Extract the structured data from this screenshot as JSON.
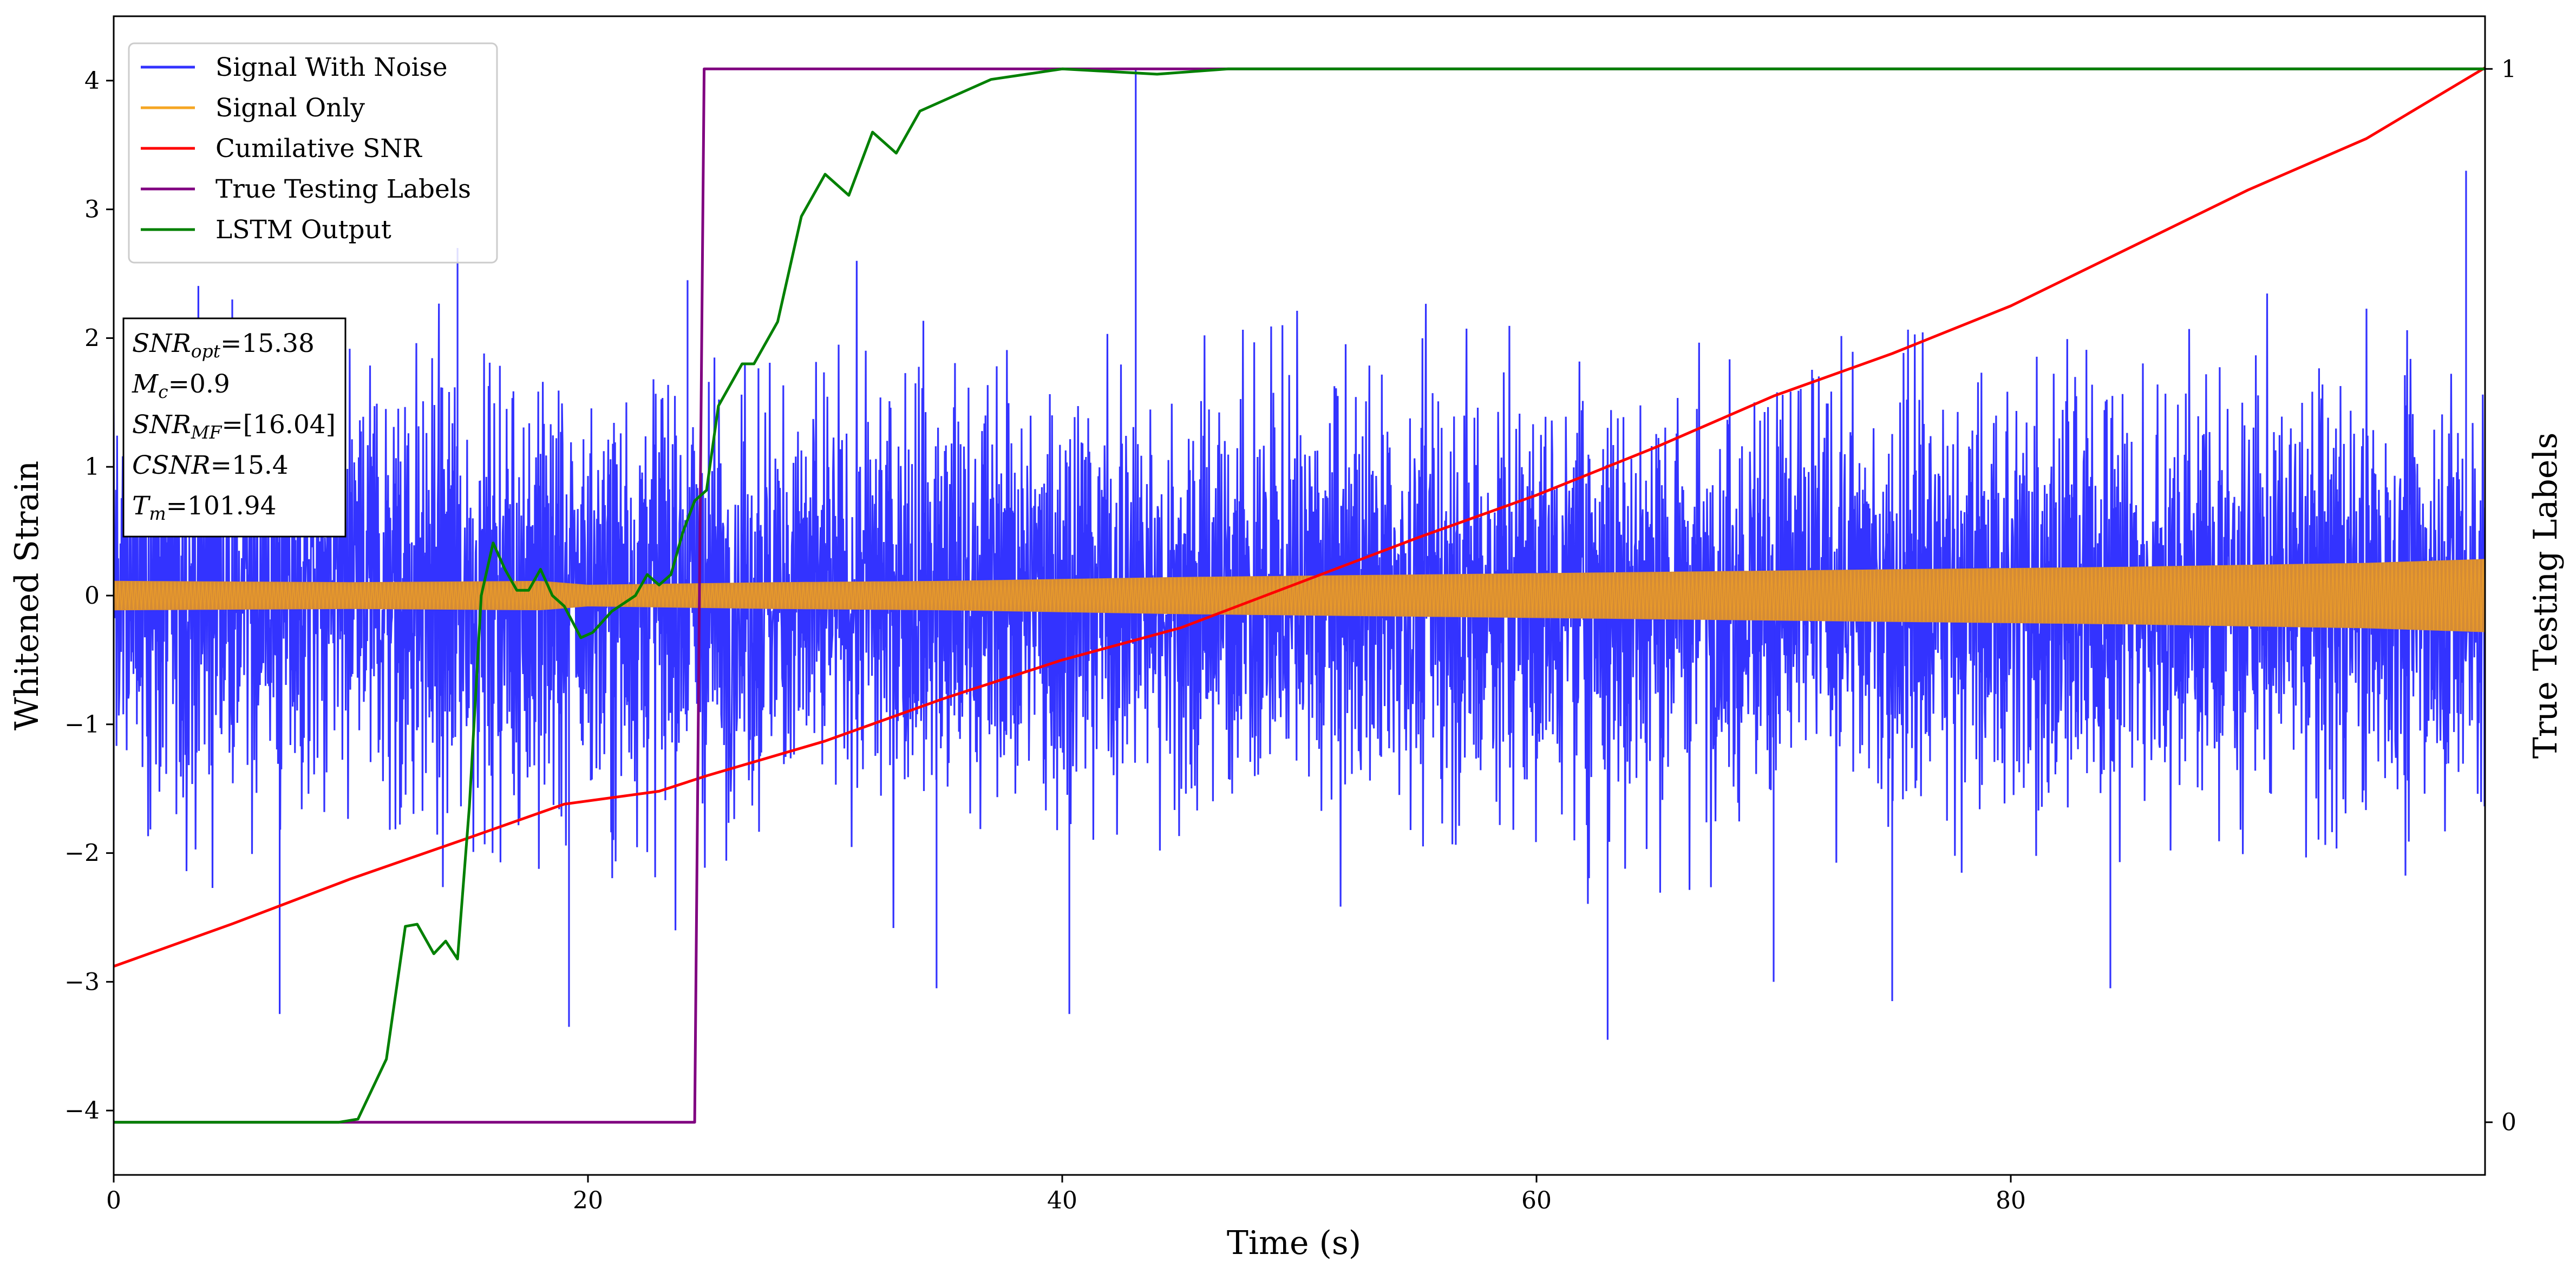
{
  "chart_data": {
    "type": "line",
    "title": "",
    "xlabel": "Time (s)",
    "ylabel": "Whitened Strain",
    "y2label": "True Testing Labels",
    "xlim": [
      0,
      100
    ],
    "ylim": [
      -4.5,
      4.5
    ],
    "y2lim": [
      -0.05,
      1.05
    ],
    "xticks": [
      "0",
      "20",
      "40",
      "60",
      "80"
    ],
    "yticks": [
      "−4",
      "−3",
      "−2",
      "−1",
      "0",
      "1",
      "2",
      "3",
      "4"
    ],
    "y2ticks": [
      "0",
      "1"
    ],
    "grid": false,
    "legend_position": "upper-left",
    "annotation": [
      {
        "sym": "SNR",
        "sub": "opt",
        "val": "=15.38"
      },
      {
        "sym": "M",
        "sub": "c",
        "val": "=0.9"
      },
      {
        "sym": "SNR",
        "sub": "MF",
        "val": "=[16.04]"
      },
      {
        "sym": "CSNR",
        "sub": "",
        "val": "=15.4"
      },
      {
        "sym": "T",
        "sub": "m",
        "val": "=101.94"
      }
    ],
    "series": [
      {
        "name": "Signal With Noise",
        "axis": "left",
        "color": "#3333ff",
        "style": "dense noise oscillation",
        "points": [
          [
            0,
            -1.9
          ],
          [
            5,
            2.3
          ],
          [
            7,
            -3.25
          ],
          [
            14.5,
            2.7
          ],
          [
            19.2,
            -3.35
          ],
          [
            24.2,
            2.45
          ],
          [
            34.7,
            -3.05
          ],
          [
            40.3,
            -3.25
          ],
          [
            43.1,
            4.1
          ],
          [
            63,
            -3.45
          ],
          [
            70,
            -3.0
          ],
          [
            75,
            -3.15
          ],
          [
            84.2,
            -3.05
          ],
          [
            99.2,
            3.3
          ]
        ]
      },
      {
        "name": "Signal Only",
        "axis": "left",
        "color": "#f5a623",
        "fill": "#d58b35",
        "envelope": [
          [
            0,
            0.11
          ],
          [
            10,
            0.1
          ],
          [
            18,
            0.11
          ],
          [
            20,
            0.08
          ],
          [
            28,
            0.1
          ],
          [
            35,
            0.11
          ],
          [
            45,
            0.14
          ],
          [
            55,
            0.16
          ],
          [
            65,
            0.18
          ],
          [
            75,
            0.2
          ],
          [
            85,
            0.22
          ],
          [
            95,
            0.25
          ],
          [
            100,
            0.28
          ]
        ]
      },
      {
        "name": "Cumilative SNR",
        "axis": "left",
        "color": "#ff0000",
        "points": [
          [
            0,
            -2.88
          ],
          [
            5,
            -2.55
          ],
          [
            10,
            -2.2
          ],
          [
            15,
            -1.88
          ],
          [
            19,
            -1.62
          ],
          [
            23,
            -1.52
          ],
          [
            25,
            -1.4
          ],
          [
            30,
            -1.13
          ],
          [
            35,
            -0.8
          ],
          [
            40,
            -0.5
          ],
          [
            45,
            -0.25
          ],
          [
            50,
            0.1
          ],
          [
            55,
            0.45
          ],
          [
            60,
            0.78
          ],
          [
            65,
            1.15
          ],
          [
            70,
            1.55
          ],
          [
            75,
            1.88
          ],
          [
            80,
            2.25
          ],
          [
            85,
            2.7
          ],
          [
            90,
            3.15
          ],
          [
            95,
            3.55
          ],
          [
            100,
            4.1
          ]
        ]
      },
      {
        "name": "True Testing Labels",
        "axis": "right",
        "color": "#800080",
        "points": [
          [
            0,
            0
          ],
          [
            24.5,
            0
          ],
          [
            24.9,
            1
          ],
          [
            100,
            1
          ]
        ]
      },
      {
        "name": "LSTM Output",
        "axis": "right",
        "color": "#008000",
        "points": [
          [
            0,
            0
          ],
          [
            9.5,
            0
          ],
          [
            10.3,
            0.003
          ],
          [
            11.5,
            0.06
          ],
          [
            12.3,
            0.186
          ],
          [
            12.8,
            0.188
          ],
          [
            13.5,
            0.16
          ],
          [
            14,
            0.172
          ],
          [
            14.5,
            0.155
          ],
          [
            15,
            0.3
          ],
          [
            15.5,
            0.5
          ],
          [
            16,
            0.55
          ],
          [
            16.5,
            0.525
          ],
          [
            17,
            0.505
          ],
          [
            17.5,
            0.505
          ],
          [
            18,
            0.525
          ],
          [
            18.5,
            0.5
          ],
          [
            19,
            0.49
          ],
          [
            19.7,
            0.46
          ],
          [
            20.2,
            0.465
          ],
          [
            21,
            0.485
          ],
          [
            22,
            0.5
          ],
          [
            22.5,
            0.52
          ],
          [
            23,
            0.51
          ],
          [
            23.5,
            0.52
          ],
          [
            24,
            0.56
          ],
          [
            24.5,
            0.59
          ],
          [
            25,
            0.6
          ],
          [
            25.5,
            0.68
          ],
          [
            26,
            0.7
          ],
          [
            26.5,
            0.72
          ],
          [
            27,
            0.72
          ],
          [
            27.5,
            0.74
          ],
          [
            28,
            0.76
          ],
          [
            28.5,
            0.81
          ],
          [
            29,
            0.86
          ],
          [
            30,
            0.9
          ],
          [
            31,
            0.88
          ],
          [
            32,
            0.94
          ],
          [
            33,
            0.92
          ],
          [
            34,
            0.96
          ],
          [
            35,
            0.97
          ],
          [
            37,
            0.99
          ],
          [
            38.5,
            0.995
          ],
          [
            40,
            1
          ],
          [
            44,
            0.995
          ],
          [
            47,
            1
          ],
          [
            52,
            1
          ],
          [
            100,
            1
          ]
        ]
      }
    ]
  }
}
